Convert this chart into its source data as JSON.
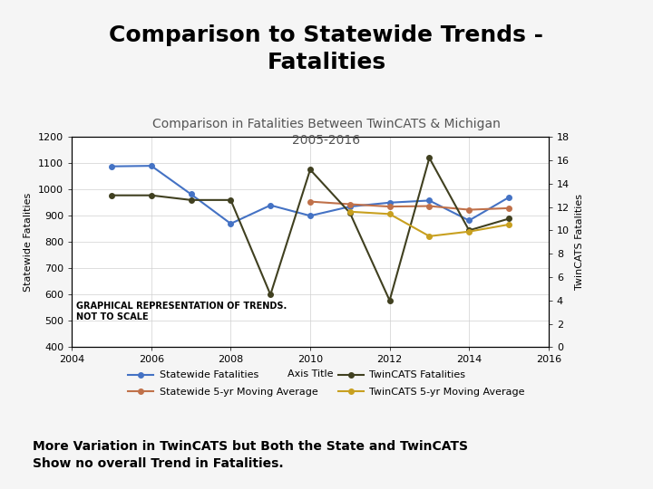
{
  "title_main": "Comparison to Statewide Trends -\nFatalities",
  "title_main_bg": "#8fa8cc",
  "chart_title": "Comparison in Fatalities Between TwinCATS & Michigan\n2005-2016",
  "xlabel": "Axis Title",
  "ylabel_left": "Statewide Fatalities",
  "ylabel_right": "TwinCATS Fatalities",
  "annotation": "GRAPHICAL REPRESENTATION OF TRENDS.\nNOT TO SCALE",
  "footer": "More Variation in TwinCATS but Both the State and TwinCATS\nShow no overall Trend in Fatalities.",
  "years": [
    2005,
    2006,
    2007,
    2008,
    2009,
    2010,
    2011,
    2012,
    2013,
    2014,
    2015
  ],
  "statewide_fatalities": [
    1088,
    1090,
    982,
    870,
    940,
    900,
    935,
    950,
    958,
    882,
    970
  ],
  "statewide_5yr_ma": [
    null,
    null,
    null,
    null,
    null,
    954,
    944,
    935,
    937,
    923,
    929
  ],
  "twincats_fatalities_scaled": [
    13.0,
    13.0,
    12.6,
    12.6,
    4.5,
    15.2,
    11.5,
    4.0,
    16.2,
    10.0,
    11.0
  ],
  "twincats_5yr_ma_scaled": [
    null,
    null,
    null,
    null,
    null,
    null,
    11.6,
    11.4,
    9.5,
    9.9,
    10.5
  ],
  "statewide_color": "#4472c4",
  "statewide_ma_color": "#c0714a",
  "twincats_color": "#404020",
  "twincats_ma_color": "#c8a020",
  "ylim_left": [
    400,
    1200
  ],
  "ylim_right": [
    0,
    18
  ],
  "yticks_left": [
    400,
    500,
    600,
    700,
    800,
    900,
    1000,
    1100,
    1200
  ],
  "yticks_right": [
    0,
    2,
    4,
    6,
    8,
    10,
    12,
    14,
    16,
    18
  ],
  "xticks": [
    2004,
    2006,
    2008,
    2010,
    2012,
    2014,
    2016
  ],
  "chart_bg": "#ffffff",
  "fig_bg": "#f5f5f5",
  "grid_color": "#d0d0d0",
  "title_fontsize": 18,
  "chart_title_fontsize": 10,
  "axis_label_fontsize": 8,
  "tick_fontsize": 8,
  "annotation_fontsize": 7,
  "legend_fontsize": 8,
  "footer_fontsize": 10
}
